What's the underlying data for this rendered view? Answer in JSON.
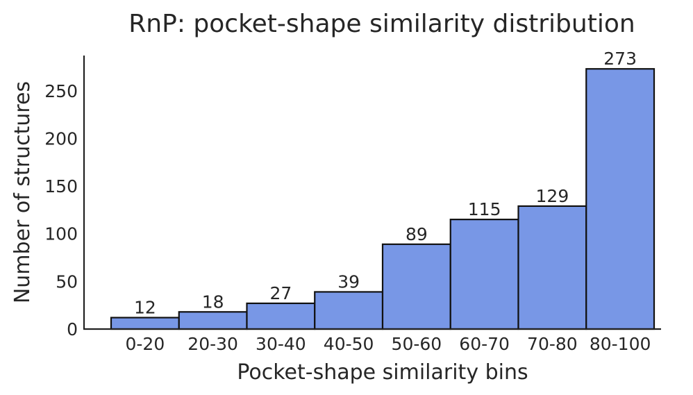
{
  "chart_data": {
    "type": "bar",
    "title": "RnP: pocket-shape similarity distribution",
    "xlabel": "Pocket-shape similarity bins",
    "ylabel": "Number of structures",
    "categories": [
      "0-20",
      "20-30",
      "30-40",
      "40-50",
      "50-60",
      "60-70",
      "70-80",
      "80-100"
    ],
    "values": [
      12,
      18,
      27,
      39,
      89,
      115,
      129,
      273
    ],
    "ylim": [
      0,
      287
    ],
    "yticks": [
      0,
      50,
      100,
      150,
      200,
      250
    ],
    "bar_color": "#7897e6",
    "grid": false,
    "legend": "none"
  }
}
